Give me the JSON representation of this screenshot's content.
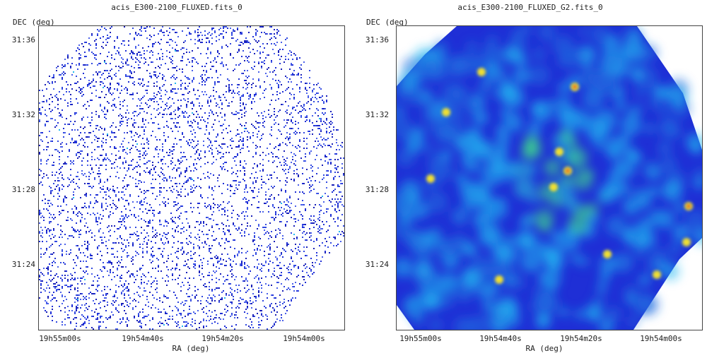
{
  "panels": [
    {
      "title": "acis_E300-2100_FLUXED.fits_0",
      "ylabel": "DEC (deg)",
      "xlabel": "RA (deg)",
      "yticks": [
        "31:36",
        "31:32",
        "31:28",
        "31:24"
      ],
      "xticks": [
        "19h55m00s",
        "19h54m40s",
        "19h54m20s",
        "19h54m00s"
      ],
      "colormap": "raw counts, sparse blue pixels"
    },
    {
      "title": "acis_E300-2100_FLUXED_G2.fits_0",
      "ylabel": "DEC (deg)",
      "xlabel": "RA (deg)",
      "yticks": [
        "31:36",
        "31:32",
        "31:28",
        "31:24"
      ],
      "xticks": [
        "19h55m00s",
        "19h54m40s",
        "19h54m20s",
        "19h54m00s"
      ],
      "colormap": "gaussian smoothed, blue-cyan-green-yellow-red"
    }
  ],
  "colors": {
    "low": "#1f2fd6",
    "mid": "#22b8f0",
    "high": "#3ee08a",
    "peak": "#f0e030",
    "hot": "#e03020",
    "frame": "#444444"
  }
}
